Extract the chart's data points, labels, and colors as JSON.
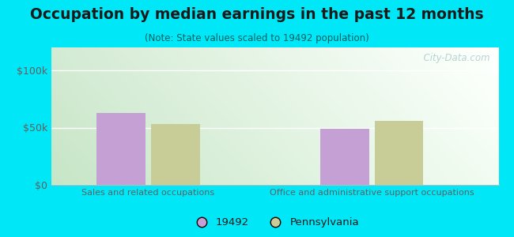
{
  "title": "Occupation by median earnings in the past 12 months",
  "subtitle": "(Note: State values scaled to 19492 population)",
  "categories": [
    "Sales and related occupations",
    "Office and administrative support occupations"
  ],
  "values_19492": [
    63000,
    49000
  ],
  "values_pa": [
    53000,
    56000
  ],
  "ylim": [
    0,
    120000
  ],
  "yticks": [
    0,
    50000,
    100000
  ],
  "ytick_labels": [
    "$0",
    "$50k",
    "$100k"
  ],
  "bar_color_19492": "#c4a0d4",
  "bar_color_pa": "#c8cc96",
  "legend_labels": [
    "19492",
    "Pennsylvania"
  ],
  "bg_color": "#00e8f8",
  "title_color": "#1a1a1a",
  "subtitle_color": "#006060",
  "axis_label_color": "#606060",
  "watermark": "  City-Data.com",
  "watermark_color": "#aacccc",
  "grid_color": "#dddddd",
  "plot_bg_colors": [
    "#c8e8c0",
    "#f0faf5"
  ],
  "title_fontsize": 13.5,
  "subtitle_fontsize": 8.5
}
